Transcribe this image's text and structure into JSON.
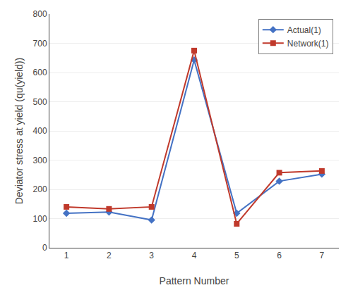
{
  "chart_data": {
    "type": "line",
    "x": [
      1,
      2,
      3,
      4,
      5,
      6,
      7
    ],
    "series": [
      {
        "name": "Actual(1)",
        "color": "#4472C4",
        "marker": "diamond",
        "values": [
          118,
          122,
          95,
          643,
          118,
          228,
          252
        ]
      },
      {
        "name": "Network(1)",
        "color": "#C0392B",
        "marker": "square",
        "values": [
          140,
          133,
          140,
          675,
          82,
          257,
          263
        ]
      }
    ],
    "xlabel": "Pattern Number",
    "ylabel": "Deviator stress at yield (qu(yield))",
    "xlim": [
      0.6,
      7.4
    ],
    "xticks": [
      1,
      2,
      3,
      4,
      5,
      6,
      7
    ],
    "ylim": [
      0,
      800
    ],
    "yticks": [
      0,
      100,
      200,
      300,
      400,
      500,
      600,
      700,
      800
    ],
    "grid": "y",
    "legend": "upper right"
  }
}
